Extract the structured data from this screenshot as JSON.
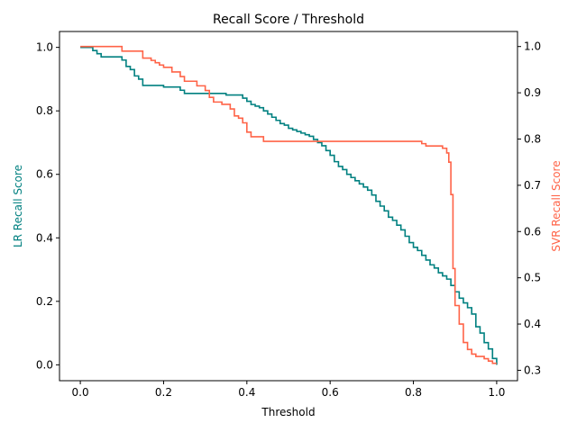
{
  "chart_data": {
    "type": "line",
    "title": "Recall Score / Threshold",
    "xlabel": "Threshold",
    "ylabel_left": "LR Recall Score",
    "ylabel_right": "SVR Recall Score",
    "xlim": [
      -0.05,
      1.05
    ],
    "ylim_left": [
      -0.05,
      1.05
    ],
    "ylim_right": [
      0.2775,
      1.0325
    ],
    "xticks": [
      "0.0",
      "0.2",
      "0.4",
      "0.6",
      "0.8",
      "1.0"
    ],
    "yticks_left": [
      "0.0",
      "0.2",
      "0.4",
      "0.6",
      "0.8",
      "1.0"
    ],
    "yticks_right": [
      "0.3",
      "0.4",
      "0.5",
      "0.6",
      "0.7",
      "0.8",
      "0.9",
      "1.0"
    ],
    "grid": false,
    "colors": {
      "lr": "#008080",
      "svr": "#ff6347"
    },
    "series": [
      {
        "axis": "left",
        "step": true,
        "x": [
          0.0,
          0.03,
          0.04,
          0.05,
          0.09,
          0.1,
          0.11,
          0.12,
          0.13,
          0.14,
          0.15,
          0.2,
          0.24,
          0.25,
          0.35,
          0.39,
          0.4,
          0.41,
          0.42,
          0.43,
          0.44,
          0.45,
          0.46,
          0.47,
          0.48,
          0.49,
          0.5,
          0.51,
          0.52,
          0.53,
          0.54,
          0.55,
          0.56,
          0.57,
          0.58,
          0.59,
          0.6,
          0.61,
          0.62,
          0.63,
          0.64,
          0.65,
          0.66,
          0.67,
          0.68,
          0.69,
          0.7,
          0.71,
          0.72,
          0.73,
          0.74,
          0.75,
          0.76,
          0.77,
          0.78,
          0.79,
          0.8,
          0.81,
          0.82,
          0.83,
          0.84,
          0.85,
          0.86,
          0.87,
          0.88,
          0.89,
          0.9,
          0.91,
          0.92,
          0.93,
          0.94,
          0.95,
          0.96,
          0.97,
          0.98,
          0.99,
          1.0
        ],
        "y": [
          1.0,
          0.99,
          0.98,
          0.97,
          0.97,
          0.96,
          0.94,
          0.93,
          0.91,
          0.9,
          0.88,
          0.875,
          0.865,
          0.855,
          0.85,
          0.84,
          0.83,
          0.82,
          0.815,
          0.81,
          0.8,
          0.79,
          0.78,
          0.77,
          0.76,
          0.755,
          0.745,
          0.74,
          0.735,
          0.73,
          0.725,
          0.72,
          0.71,
          0.7,
          0.69,
          0.675,
          0.66,
          0.64,
          0.625,
          0.615,
          0.6,
          0.59,
          0.58,
          0.57,
          0.56,
          0.55,
          0.535,
          0.515,
          0.5,
          0.485,
          0.465,
          0.455,
          0.44,
          0.425,
          0.405,
          0.385,
          0.37,
          0.36,
          0.345,
          0.33,
          0.315,
          0.305,
          0.29,
          0.28,
          0.27,
          0.25,
          0.23,
          0.21,
          0.195,
          0.18,
          0.16,
          0.12,
          0.1,
          0.07,
          0.05,
          0.02,
          0.0
        ]
      },
      {
        "axis": "right",
        "step": true,
        "x": [
          0.0,
          0.1,
          0.15,
          0.17,
          0.18,
          0.19,
          0.2,
          0.22,
          0.24,
          0.25,
          0.28,
          0.3,
          0.31,
          0.32,
          0.34,
          0.36,
          0.37,
          0.38,
          0.39,
          0.4,
          0.41,
          0.44,
          0.8,
          0.81,
          0.82,
          0.83,
          0.85,
          0.86,
          0.87,
          0.88,
          0.885,
          0.89,
          0.895,
          0.9,
          0.91,
          0.92,
          0.93,
          0.94,
          0.95,
          0.97,
          0.98,
          0.99,
          1.0
        ],
        "y": [
          1.0,
          0.99,
          0.975,
          0.97,
          0.965,
          0.96,
          0.955,
          0.945,
          0.935,
          0.925,
          0.915,
          0.905,
          0.89,
          0.88,
          0.875,
          0.865,
          0.85,
          0.845,
          0.835,
          0.815,
          0.805,
          0.795,
          0.795,
          0.795,
          0.79,
          0.785,
          0.785,
          0.785,
          0.78,
          0.77,
          0.75,
          0.68,
          0.52,
          0.44,
          0.4,
          0.36,
          0.345,
          0.335,
          0.33,
          0.325,
          0.32,
          0.315,
          0.315
        ]
      }
    ]
  }
}
